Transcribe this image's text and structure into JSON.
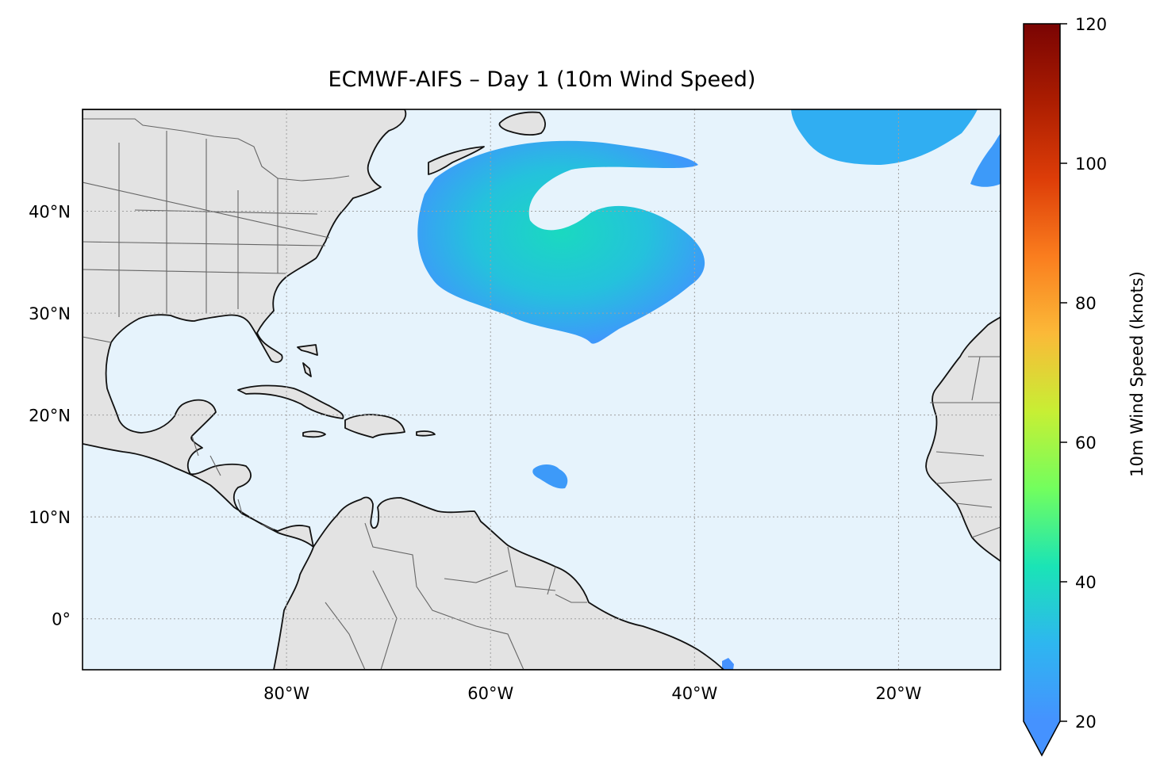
{
  "title": "ECMWF-AIFS – Day 1 (10m Wind Speed)",
  "map": {
    "extent": {
      "lon_min": -100,
      "lon_max": -10,
      "lat_min": -5,
      "lat_max": 50
    },
    "ocean_color": "#e6f3fc",
    "land_color": "#e3e3e3",
    "coastline_color": "#111111",
    "border_color": "#666666",
    "gridlines": true,
    "lat_ticks": [
      {
        "lat": 40,
        "label": "40°N"
      },
      {
        "lat": 30,
        "label": "30°N"
      },
      {
        "lat": 20,
        "label": "20°N"
      },
      {
        "lat": 10,
        "label": "10°N"
      },
      {
        "lat": 0,
        "label": "0°"
      }
    ],
    "lon_ticks": [
      {
        "lon": -80,
        "label": "80°W"
      },
      {
        "lon": -60,
        "label": "60°W"
      },
      {
        "lon": -40,
        "label": "40°W"
      },
      {
        "lon": -20,
        "label": "20°W"
      }
    ]
  },
  "colorbar": {
    "label": "10m Wind Speed (knots)",
    "colormap": "turbo",
    "min": 20,
    "max": 120,
    "ticks": [
      "20",
      "40",
      "60",
      "80",
      "100",
      "120"
    ],
    "extend": "min",
    "colors": [
      "#4592ff",
      "#2eb6f0",
      "#1ae4b6",
      "#72fe5e",
      "#c7ef34",
      "#fbb938",
      "#fa7d1e",
      "#dd3d08",
      "#ab1d01",
      "#7a0403"
    ]
  },
  "wind_features": [
    {
      "name": "Subtropical Atlantic cyclone",
      "speed_knots": 28
    },
    {
      "name": "Northeast Atlantic band",
      "speed_knots": 24
    },
    {
      "name": "Iberian coast patch",
      "speed_knots": 21
    },
    {
      "name": "Tropical Atlantic patch",
      "speed_knots": 21
    },
    {
      "name": "Brazil coast patch",
      "speed_knots": 20
    }
  ]
}
